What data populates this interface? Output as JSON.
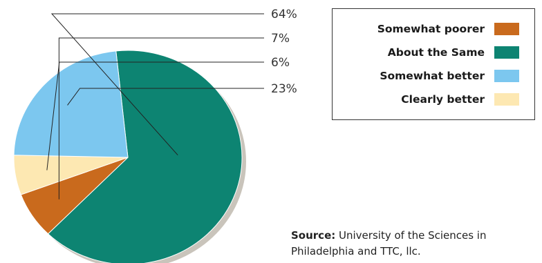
{
  "chart_data": {
    "type": "pie",
    "slices": [
      {
        "label": "About the Same",
        "value": 64,
        "value_label": "64%",
        "color": "#0d8472"
      },
      {
        "label": "Somewhat poorer",
        "value": 7,
        "value_label": "7%",
        "color": "#c96a1d"
      },
      {
        "label": "Clearly better",
        "value": 6,
        "value_label": "6%",
        "color": "#fde8b2"
      },
      {
        "label": "Somewhat better",
        "value": 23,
        "value_label": "23%",
        "color": "#7cc7ef"
      }
    ],
    "legend_order": [
      "Somewhat poorer",
      "About the Same",
      "Somewhat better",
      "Clearly better"
    ],
    "legend_placement": "top-right"
  },
  "source": {
    "label": "Source:",
    "text": "University of the Sciences in Philadelphia and TTC, llc."
  }
}
